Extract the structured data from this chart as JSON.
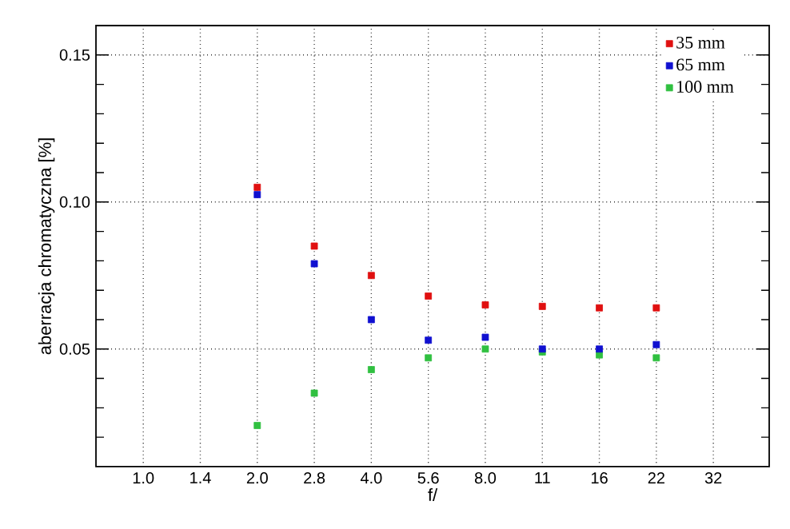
{
  "chart_data": {
    "type": "scatter",
    "xlabel": "f/",
    "ylabel": "aberracja chromatyczna [%]",
    "categories": [
      "1.0",
      "1.4",
      "2.0",
      "2.8",
      "4.0",
      "5.6",
      "8.0",
      "11",
      "16",
      "22",
      "32"
    ],
    "series": [
      {
        "name": "35 mm",
        "color": "#e01010",
        "values": [
          null,
          null,
          0.105,
          0.085,
          0.075,
          0.068,
          0.065,
          0.0645,
          0.064,
          0.064,
          null
        ]
      },
      {
        "name": "65 mm",
        "color": "#1010d0",
        "values": [
          null,
          null,
          0.1025,
          0.079,
          0.06,
          0.053,
          0.054,
          0.05,
          0.05,
          0.0515,
          null
        ]
      },
      {
        "name": "100 mm",
        "color": "#30c040",
        "values": [
          null,
          null,
          0.024,
          0.035,
          0.043,
          0.047,
          0.05,
          0.049,
          0.048,
          0.047,
          null
        ]
      }
    ],
    "ylim": [
      0.01,
      0.16
    ],
    "yticks": [
      {
        "value": 0.02,
        "label": null
      },
      {
        "value": 0.03,
        "label": null
      },
      {
        "value": 0.04,
        "label": null
      },
      {
        "value": 0.05,
        "label": "0.05"
      },
      {
        "value": 0.06,
        "label": null
      },
      {
        "value": 0.07,
        "label": null
      },
      {
        "value": 0.08,
        "label": null
      },
      {
        "value": 0.09,
        "label": null
      },
      {
        "value": 0.1,
        "label": "0.10"
      },
      {
        "value": 0.11,
        "label": null
      },
      {
        "value": 0.12,
        "label": null
      },
      {
        "value": 0.13,
        "label": null
      },
      {
        "value": 0.14,
        "label": null
      },
      {
        "value": 0.15,
        "label": "0.15"
      }
    ],
    "grid": true,
    "legend": "top right",
    "marker": "square"
  }
}
